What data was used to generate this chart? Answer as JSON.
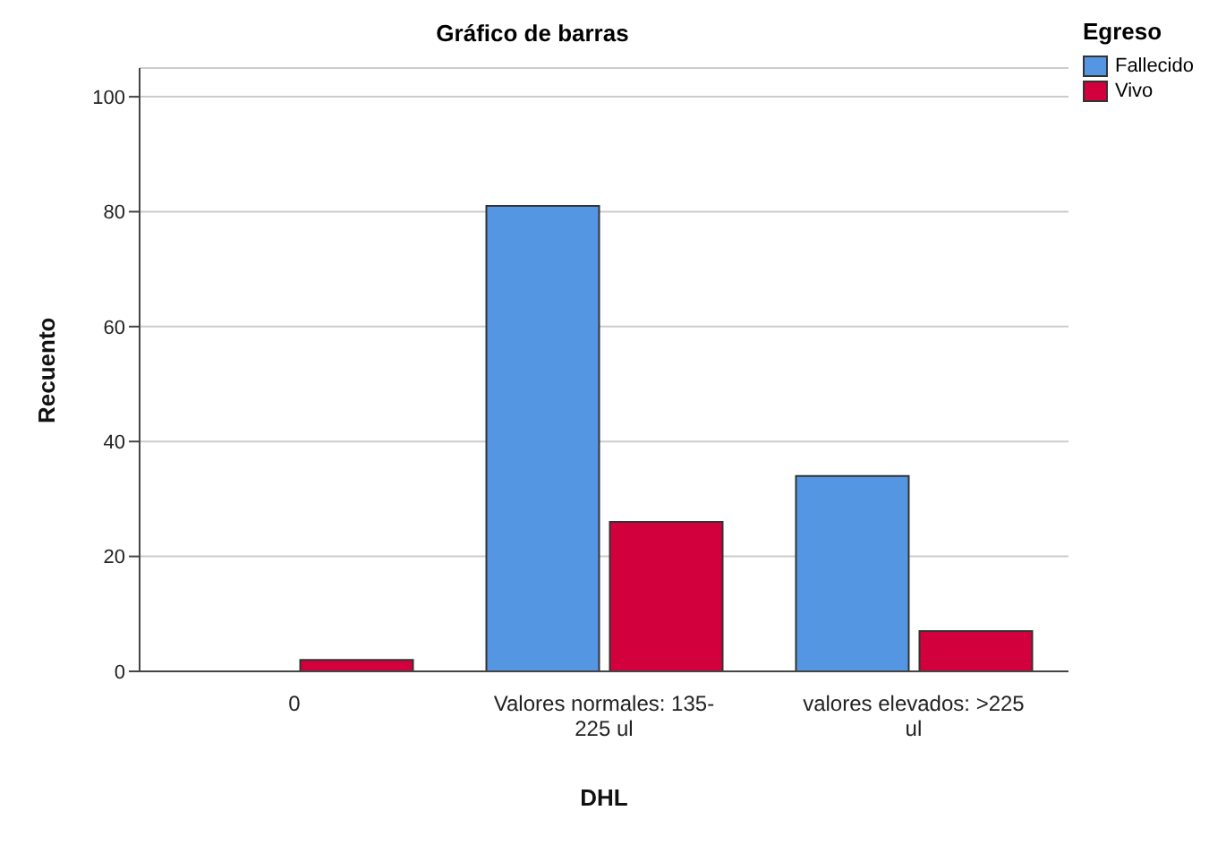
{
  "chart_data": {
    "type": "bar",
    "title": "Gráfico de barras",
    "xlabel": "DHL",
    "ylabel": "Recuento",
    "legend_title": "Egreso",
    "categories": [
      "0",
      "Valores normales: 135-225 ul",
      "valores elevados: >225 ul"
    ],
    "series": [
      {
        "name": "Fallecido",
        "color": "#5596e3",
        "values": [
          null,
          81,
          34
        ]
      },
      {
        "name": "Vivo",
        "color": "#d2003c",
        "values": [
          2,
          26,
          7
        ]
      }
    ],
    "ylim": [
      0,
      105
    ],
    "yticks": [
      0,
      20,
      40,
      60,
      80,
      100
    ],
    "grid": "y",
    "legend": "top right"
  }
}
